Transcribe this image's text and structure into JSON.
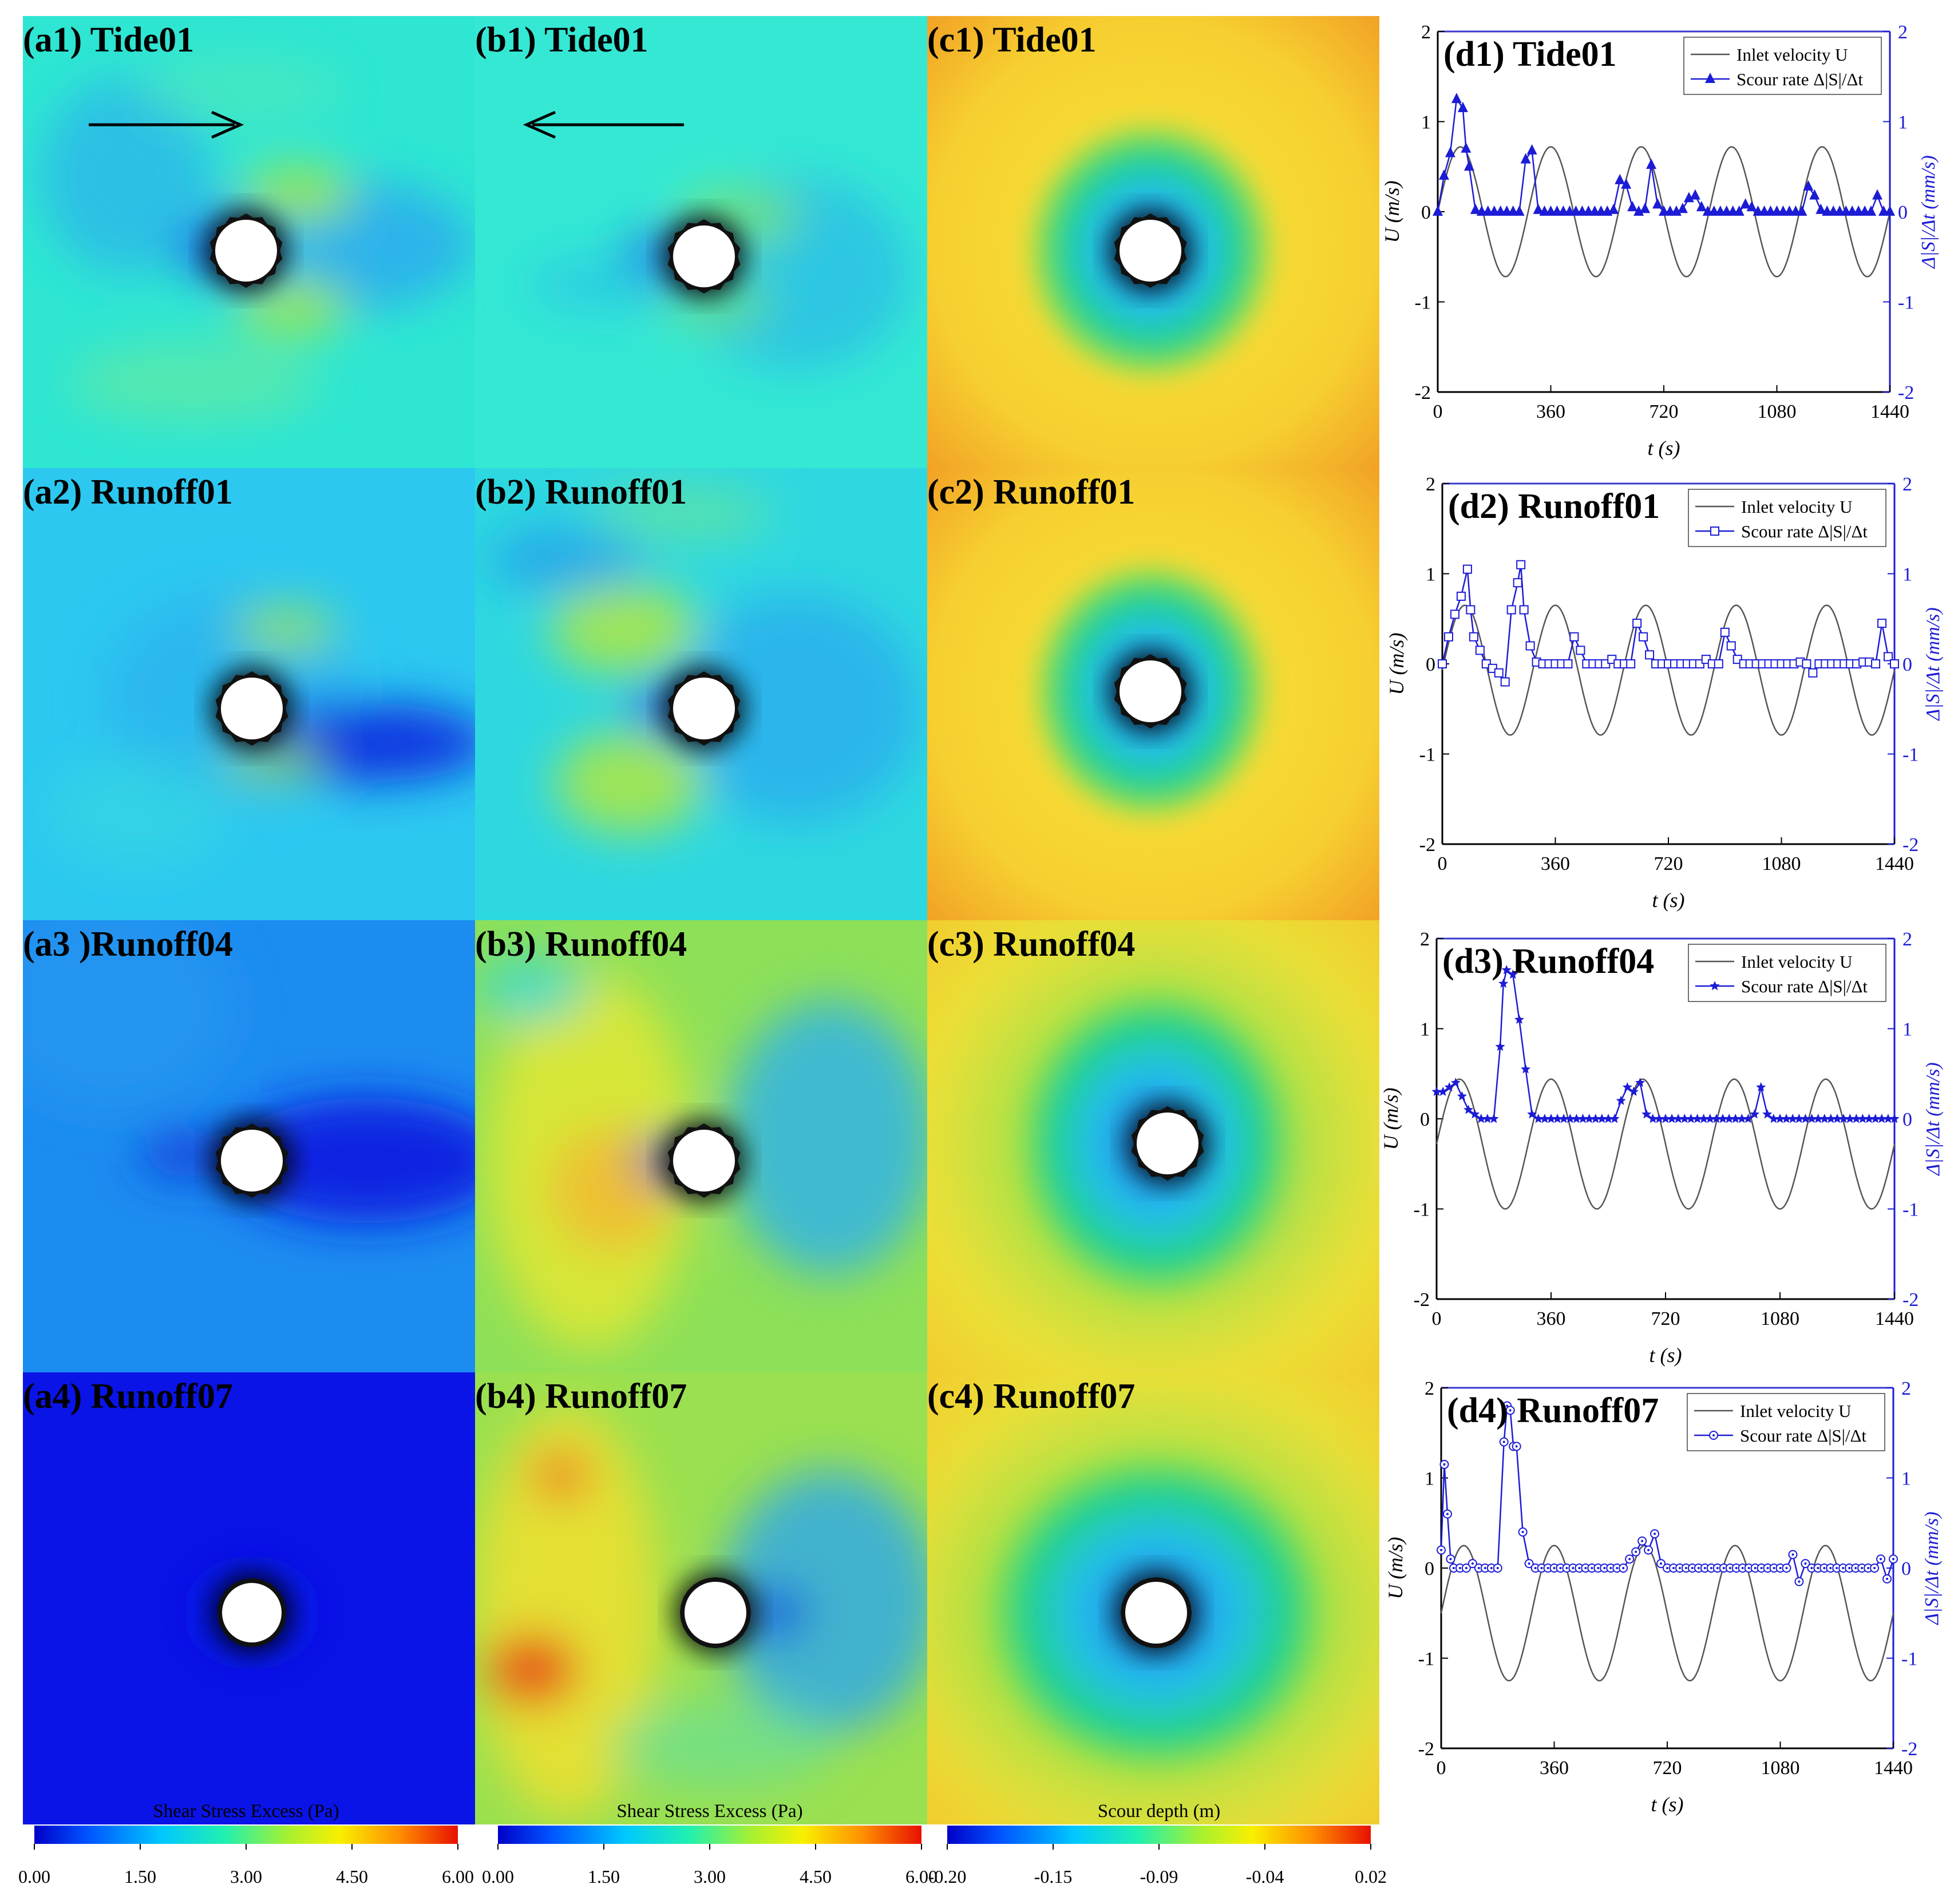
{
  "colors": {
    "scour_series": "#1c1cd6",
    "velocity_line": "#555555",
    "right_axis": "#1c1cd6",
    "axis_frame": "#3a3ad0"
  },
  "panels": [
    {
      "label": "(a1) Tide01",
      "kind": "shear",
      "variant": "tide-a"
    },
    {
      "label": "(b1) Tide01",
      "kind": "shear",
      "variant": "tide-b"
    },
    {
      "label": "(c1) Tide01",
      "kind": "scour",
      "variant": "c1"
    },
    {
      "label": "(a2) Runoff01",
      "kind": "shear",
      "variant": "a2"
    },
    {
      "label": "(b2) Runoff01",
      "kind": "shear",
      "variant": "b2"
    },
    {
      "label": "(c2) Runoff01",
      "kind": "scour",
      "variant": "c2"
    },
    {
      "label": "(a3 )Runoff04",
      "kind": "shear",
      "variant": "a3"
    },
    {
      "label": "(b3) Runoff04",
      "kind": "shear",
      "variant": "b3"
    },
    {
      "label": "(c3) Runoff04",
      "kind": "scour",
      "variant": "c3"
    },
    {
      "label": "(a4) Runoff07",
      "kind": "shear",
      "variant": "a4"
    },
    {
      "label": "(b4) Runoff07",
      "kind": "shear",
      "variant": "b4"
    },
    {
      "label": "(c4) Runoff07",
      "kind": "scour",
      "variant": "c4"
    }
  ],
  "colorbars": [
    {
      "title": "Shear Stress Excess (Pa)",
      "ticks": [
        "0.00",
        "1.50",
        "3.00",
        "4.50",
        "6.00"
      ],
      "colormap": "jet"
    },
    {
      "title": "Shear Stress Excess (Pa)",
      "ticks": [
        "0.00",
        "1.50",
        "3.00",
        "4.50",
        "6.00"
      ],
      "colormap": "jet"
    },
    {
      "title": "Scour depth (m)",
      "ticks": [
        "-0.20",
        "-0.15",
        "-0.09",
        "-0.04",
        "0.02"
      ],
      "colormap": "jet"
    }
  ],
  "chart_data": [
    {
      "type": "line",
      "title": "(d1) Tide01",
      "xlabel": "t (s)",
      "ylabel": "U (m/s)",
      "ylabel_right": "Δ|S|/Δt (mm/s)",
      "xlim": [
        0,
        1440
      ],
      "ylim": [
        -2,
        2
      ],
      "ylim_right": [
        -2,
        2
      ],
      "xticks": [
        "0",
        "360",
        "720",
        "1080",
        "1440"
      ],
      "yticks": [
        "-2",
        "-1",
        "0",
        "1",
        "2"
      ],
      "legend": [
        "Inlet velocity U",
        "Scour rate Δ|S|/Δt"
      ],
      "legend_position": "top-right",
      "marker": "filled-triangle",
      "velocity": {
        "amplitude": 0.72,
        "offset": 0,
        "period": 288,
        "phase": 0
      },
      "scour_rate": {
        "t": [
          0,
          20,
          40,
          60,
          80,
          90,
          100,
          120,
          140,
          160,
          180,
          200,
          220,
          240,
          260,
          280,
          300,
          320,
          340,
          360,
          380,
          400,
          420,
          440,
          460,
          480,
          500,
          520,
          540,
          560,
          580,
          600,
          620,
          640,
          660,
          680,
          700,
          720,
          740,
          760,
          780,
          800,
          820,
          840,
          860,
          880,
          900,
          920,
          940,
          960,
          980,
          1000,
          1020,
          1040,
          1060,
          1080,
          1100,
          1120,
          1140,
          1160,
          1180,
          1200,
          1220,
          1240,
          1260,
          1280,
          1300,
          1320,
          1340,
          1360,
          1380,
          1400,
          1420,
          1440
        ],
        "values": [
          0.0,
          0.4,
          0.65,
          1.25,
          1.15,
          0.7,
          0.5,
          0.02,
          0.0,
          0.0,
          0.0,
          0.0,
          0.0,
          0.0,
          0.0,
          0.58,
          0.68,
          0.02,
          0.0,
          0.0,
          0.0,
          0.0,
          0.0,
          0.0,
          0.0,
          0.0,
          0.0,
          0.0,
          0.0,
          0.02,
          0.35,
          0.3,
          0.05,
          0.0,
          0.03,
          0.52,
          0.08,
          0.0,
          0.0,
          0.0,
          0.03,
          0.15,
          0.18,
          0.05,
          0.0,
          0.0,
          0.0,
          0.0,
          0.0,
          0.0,
          0.08,
          0.05,
          0.0,
          0.0,
          0.0,
          0.0,
          0.0,
          0.0,
          0.0,
          0.0,
          0.28,
          0.18,
          0.02,
          0.0,
          0.0,
          0.0,
          0.0,
          0.0,
          0.0,
          0.0,
          0.0,
          0.18,
          0.0,
          0.0
        ]
      }
    },
    {
      "type": "line",
      "title": "(d2) Runoff01",
      "xlabel": "t (s)",
      "ylabel": "U (m/s)",
      "ylabel_right": "Δ|S|/Δt (mm/s)",
      "xlim": [
        0,
        1440
      ],
      "ylim": [
        -2,
        2
      ],
      "ylim_right": [
        -2,
        2
      ],
      "xticks": [
        "0",
        "360",
        "720",
        "1080",
        "1440"
      ],
      "yticks": [
        "-2",
        "-1",
        "0",
        "1",
        "2"
      ],
      "legend": [
        "Inlet velocity U",
        "Scour rate Δ|S|/Δt"
      ],
      "legend_position": "top-right",
      "marker": "open-square",
      "velocity": {
        "amplitude": 0.72,
        "offset": -0.07,
        "period": 288,
        "phase": 0
      },
      "scour_rate": {
        "t": [
          0,
          20,
          40,
          60,
          80,
          90,
          100,
          120,
          140,
          160,
          180,
          200,
          220,
          240,
          250,
          260,
          280,
          300,
          320,
          340,
          360,
          380,
          400,
          420,
          440,
          460,
          480,
          500,
          520,
          540,
          560,
          580,
          600,
          620,
          640,
          660,
          680,
          700,
          720,
          740,
          760,
          780,
          800,
          820,
          840,
          860,
          880,
          900,
          920,
          940,
          960,
          980,
          1000,
          1020,
          1040,
          1060,
          1080,
          1100,
          1120,
          1140,
          1160,
          1180,
          1200,
          1220,
          1240,
          1260,
          1280,
          1300,
          1320,
          1340,
          1360,
          1380,
          1400,
          1420,
          1440
        ],
        "values": [
          0.0,
          0.3,
          0.55,
          0.75,
          1.05,
          0.6,
          0.3,
          0.15,
          0.0,
          -0.05,
          -0.1,
          -0.2,
          0.6,
          0.9,
          1.1,
          0.6,
          0.2,
          0.02,
          0.0,
          0.0,
          0.0,
          0.0,
          0.0,
          0.3,
          0.15,
          0.0,
          0.0,
          0.0,
          0.0,
          0.05,
          0.0,
          0.0,
          0.0,
          0.45,
          0.3,
          0.1,
          0.0,
          0.0,
          0.0,
          0.0,
          0.0,
          0.0,
          0.0,
          0.0,
          0.05,
          0.0,
          0.0,
          0.35,
          0.2,
          0.05,
          0.0,
          0.0,
          0.0,
          0.0,
          0.0,
          0.0,
          0.0,
          0.0,
          0.0,
          0.02,
          0.0,
          -0.1,
          0.0,
          0.0,
          0.0,
          0.0,
          0.0,
          0.0,
          0.0,
          0.02,
          0.02,
          0.0,
          0.45,
          0.08,
          0.0
        ]
      }
    },
    {
      "type": "line",
      "title": "(d3) Runoff04",
      "xlabel": "t (s)",
      "ylabel": "U (m/s)",
      "ylabel_right": "Δ|S|/Δt (mm/s)",
      "xlim": [
        0,
        1440
      ],
      "ylim": [
        -2,
        2
      ],
      "ylim_right": [
        -2,
        2
      ],
      "xticks": [
        "0",
        "360",
        "720",
        "1080",
        "1440"
      ],
      "yticks": [
        "-2",
        "-1",
        "0",
        "1",
        "2"
      ],
      "legend": [
        "Inlet velocity U",
        "Scour rate Δ|S|/Δt"
      ],
      "legend_position": "top-right",
      "marker": "filled-star",
      "velocity": {
        "amplitude": 0.72,
        "offset": -0.28,
        "period": 288,
        "phase": 0
      },
      "scour_rate": {
        "t": [
          0,
          20,
          40,
          60,
          80,
          100,
          120,
          140,
          160,
          180,
          200,
          210,
          220,
          240,
          260,
          280,
          300,
          320,
          340,
          360,
          380,
          400,
          420,
          440,
          460,
          480,
          500,
          520,
          540,
          560,
          580,
          600,
          620,
          640,
          660,
          680,
          700,
          720,
          740,
          760,
          780,
          800,
          820,
          840,
          860,
          880,
          900,
          920,
          940,
          960,
          980,
          1000,
          1020,
          1040,
          1060,
          1080,
          1100,
          1120,
          1140,
          1160,
          1180,
          1200,
          1220,
          1240,
          1260,
          1280,
          1300,
          1320,
          1340,
          1360,
          1380,
          1400,
          1420,
          1440
        ],
        "values": [
          0.3,
          0.3,
          0.35,
          0.4,
          0.25,
          0.1,
          0.05,
          0.0,
          0.0,
          0.0,
          0.8,
          1.5,
          1.65,
          1.6,
          1.1,
          0.55,
          0.05,
          0.0,
          0.0,
          0.0,
          0.0,
          0.0,
          0.0,
          0.0,
          0.0,
          0.0,
          0.0,
          0.0,
          0.0,
          0.0,
          0.2,
          0.35,
          0.3,
          0.4,
          0.05,
          0.0,
          0.0,
          0.0,
          0.0,
          0.0,
          0.0,
          0.0,
          0.0,
          0.0,
          0.0,
          0.0,
          0.0,
          0.0,
          0.0,
          0.0,
          0.0,
          0.05,
          0.35,
          0.05,
          0.0,
          0.0,
          0.0,
          0.0,
          0.0,
          0.0,
          0.0,
          0.0,
          0.0,
          0.0,
          0.0,
          0.0,
          0.0,
          0.0,
          0.0,
          0.0,
          0.0,
          0.0,
          0.0,
          0.0
        ]
      }
    },
    {
      "type": "line",
      "title": "(d4) Runoff07",
      "xlabel": "t (s)",
      "ylabel": "U (m/s)",
      "ylabel_right": "Δ|S|/Δt (mm/s)",
      "xlim": [
        0,
        1440
      ],
      "ylim": [
        -2,
        2
      ],
      "ylim_right": [
        -2,
        2
      ],
      "xticks": [
        "0",
        "360",
        "720",
        "1080",
        "1440"
      ],
      "yticks": [
        "-2",
        "-1",
        "0",
        "1",
        "2"
      ],
      "legend": [
        "Inlet velocity U",
        "Scour rate Δ|S|/Δt"
      ],
      "legend_position": "top-right",
      "marker": "open-circle-dot",
      "velocity": {
        "amplitude": 0.75,
        "offset": -0.5,
        "period": 288,
        "phase": 0
      },
      "scour_rate": {
        "t": [
          0,
          10,
          20,
          30,
          40,
          60,
          80,
          100,
          120,
          140,
          160,
          180,
          200,
          210,
          220,
          230,
          240,
          260,
          280,
          300,
          320,
          340,
          360,
          380,
          400,
          420,
          440,
          460,
          480,
          500,
          520,
          540,
          560,
          580,
          600,
          620,
          640,
          660,
          680,
          700,
          720,
          740,
          760,
          780,
          800,
          820,
          840,
          860,
          880,
          900,
          920,
          940,
          960,
          980,
          1000,
          1020,
          1040,
          1060,
          1080,
          1100,
          1120,
          1140,
          1160,
          1180,
          1200,
          1220,
          1240,
          1260,
          1280,
          1300,
          1320,
          1340,
          1360,
          1380,
          1400,
          1420,
          1440
        ],
        "values": [
          0.2,
          1.15,
          0.6,
          0.1,
          0.0,
          0.0,
          0.0,
          0.05,
          0.0,
          0.0,
          0.0,
          0.0,
          1.4,
          1.8,
          1.75,
          1.35,
          1.35,
          0.4,
          0.05,
          0.0,
          0.0,
          0.0,
          0.0,
          0.0,
          0.0,
          0.0,
          0.0,
          0.0,
          0.0,
          0.0,
          0.0,
          0.0,
          0.0,
          0.0,
          0.1,
          0.18,
          0.3,
          0.2,
          0.38,
          0.05,
          0.0,
          0.0,
          0.0,
          0.0,
          0.0,
          0.0,
          0.0,
          0.0,
          0.0,
          0.0,
          0.0,
          0.0,
          0.0,
          0.0,
          0.0,
          0.0,
          0.0,
          0.0,
          0.0,
          0.0,
          0.15,
          -0.15,
          0.05,
          0.0,
          0.0,
          0.0,
          0.0,
          0.0,
          0.0,
          0.0,
          0.0,
          0.0,
          0.0,
          0.0,
          0.1,
          -0.12,
          0.1
        ]
      }
    }
  ]
}
